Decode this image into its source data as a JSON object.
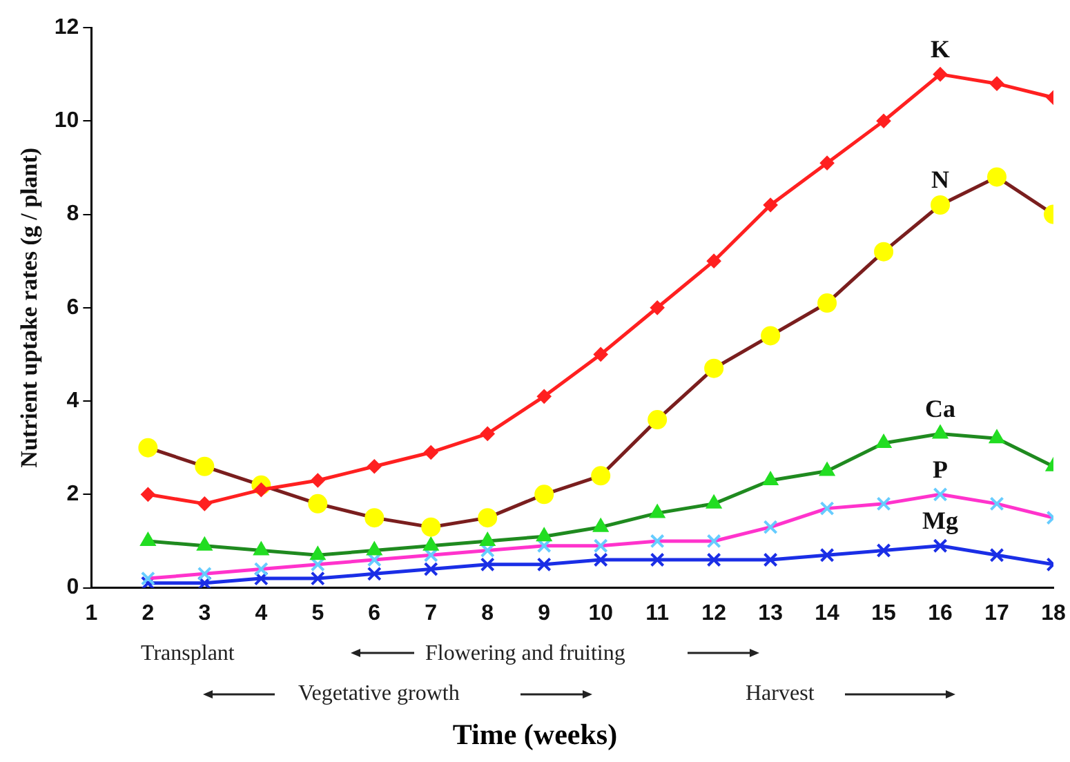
{
  "chart_data": {
    "type": "line",
    "xlabel": "Time (weeks)",
    "ylabel": "Nutrient uptake rates (g / plant)",
    "x": [
      2,
      3,
      4,
      5,
      6,
      7,
      8,
      9,
      10,
      11,
      12,
      13,
      14,
      15,
      16,
      17,
      18
    ],
    "xlim": [
      1,
      18
    ],
    "xticks": [
      1,
      2,
      3,
      4,
      5,
      6,
      7,
      8,
      9,
      10,
      11,
      12,
      13,
      14,
      15,
      16,
      17,
      18
    ],
    "ylim": [
      0,
      12
    ],
    "yticks": [
      0,
      2,
      4,
      6,
      8,
      10,
      12
    ],
    "grid": false,
    "legend": false,
    "series": [
      {
        "name": "K",
        "color": "#ff2020",
        "marker": "diamond",
        "values": [
          2.0,
          1.8,
          2.1,
          2.3,
          2.6,
          2.9,
          3.3,
          4.1,
          5.0,
          6.0,
          7.0,
          8.2,
          9.1,
          10.0,
          11.0,
          10.8,
          10.5
        ]
      },
      {
        "name": "N",
        "color": "#7a1e1e",
        "colors": [
          "#ffff00",
          "#ffff00",
          "#ffff00",
          "#ffff00",
          "#ffff00",
          "#ffff00",
          "#ffff00",
          "#ffff00",
          "#ffff00",
          "#ffff00",
          "#ffff00",
          "#ffff00",
          "#ffff00",
          "#ffff00",
          "#ffff00",
          "#ffff00",
          "#ffff00"
        ],
        "marker": "circle",
        "values": [
          3.0,
          2.6,
          2.2,
          1.8,
          1.5,
          1.3,
          1.5,
          2.0,
          2.4,
          3.6,
          4.7,
          5.4,
          6.1,
          7.2,
          8.2,
          8.8,
          8.0
        ]
      },
      {
        "name": "Ca",
        "color": "#1f8a1f",
        "colors": [
          "#22dd22",
          "#22dd22",
          "#22dd22",
          "#22dd22",
          "#22dd22",
          "#22dd22",
          "#22dd22",
          "#22dd22",
          "#22dd22",
          "#22dd22",
          "#22dd22",
          "#22dd22",
          "#22dd22",
          "#22dd22",
          "#22dd22",
          "#22dd22",
          "#22dd22"
        ],
        "marker": "triangle",
        "values": [
          1.0,
          0.9,
          0.8,
          0.7,
          0.8,
          0.9,
          1.0,
          1.1,
          1.3,
          1.6,
          1.8,
          2.3,
          2.5,
          3.1,
          3.3,
          3.2,
          2.6
        ]
      },
      {
        "name": "P",
        "color": "#ff33cc",
        "colors": [
          "#66ccff",
          "#66ccff",
          "#66ccff",
          "#66ccff",
          "#66ccff",
          "#66ccff",
          "#66ccff",
          "#66ccff",
          "#66ccff",
          "#66ccff",
          "#66ccff",
          "#66ccff",
          "#66ccff",
          "#66ccff",
          "#66ccff",
          "#66ccff",
          "#66ccff"
        ],
        "marker": "cross",
        "values": [
          0.2,
          0.3,
          0.4,
          0.5,
          0.6,
          0.7,
          0.8,
          0.9,
          0.9,
          1.0,
          1.0,
          1.3,
          1.7,
          1.8,
          2.0,
          1.8,
          1.5
        ]
      },
      {
        "name": "Mg",
        "color": "#1a2ee6",
        "marker": "cross",
        "values": [
          0.1,
          0.1,
          0.2,
          0.2,
          0.3,
          0.4,
          0.5,
          0.5,
          0.6,
          0.6,
          0.6,
          0.6,
          0.7,
          0.8,
          0.9,
          0.7,
          0.5
        ]
      }
    ],
    "annotations": [
      "Transplant",
      "Flowering and fruiting",
      "Vegetative growth",
      "Harvest"
    ]
  }
}
